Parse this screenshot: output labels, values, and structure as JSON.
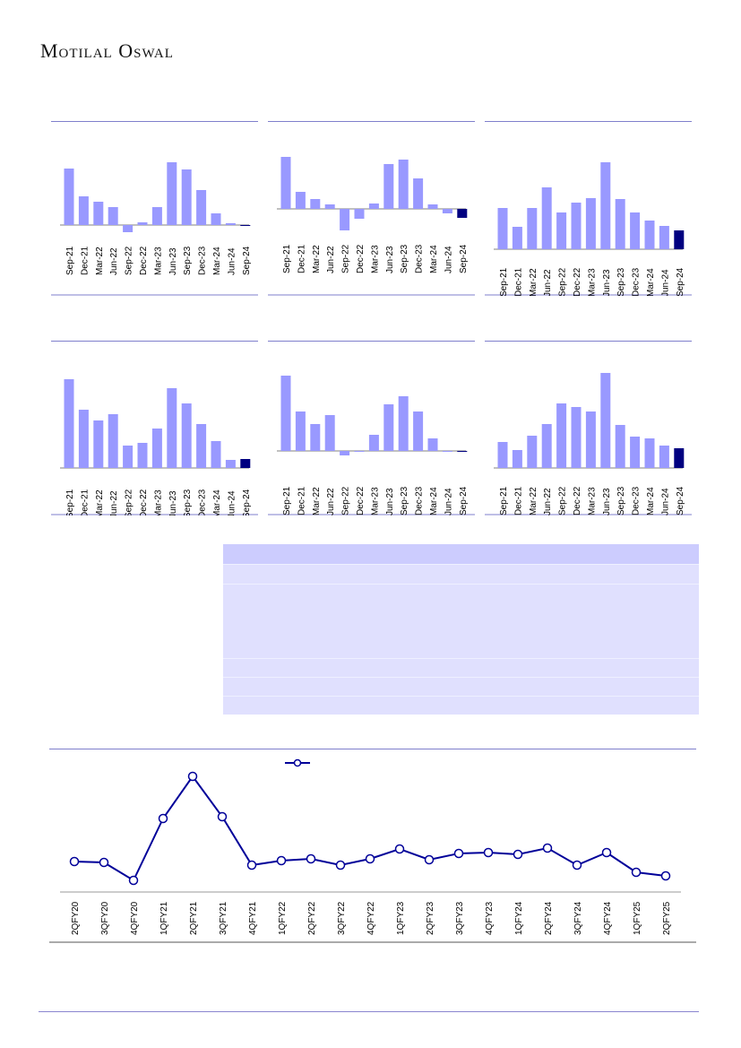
{
  "brand": "Motilal Oswal",
  "colors": {
    "bar": "#9999ff",
    "bar_latest": "#000080",
    "line": "#000099",
    "rule": "#7f7fcc"
  },
  "chart_data": [
    {
      "type": "bar",
      "categories": [
        "Sep-21",
        "Dec-21",
        "Mar-22",
        "Jun-22",
        "Sep-22",
        "Dec-22",
        "Mar-23",
        "Jun-23",
        "Sep-23",
        "Dec-23",
        "Mar-24",
        "Jun-24",
        "Sep-24"
      ],
      "values": [
        63,
        32,
        26,
        20,
        -8,
        3,
        20,
        70,
        62,
        39,
        13,
        2,
        -1
      ]
    },
    {
      "type": "bar",
      "categories": [
        "Sep-21",
        "Dec-21",
        "Mar-22",
        "Jun-22",
        "Sep-22",
        "Dec-22",
        "Mar-23",
        "Jun-23",
        "Sep-23",
        "Dec-23",
        "Mar-24",
        "Jun-24",
        "Sep-24"
      ],
      "values": [
        58,
        19,
        11,
        5,
        -24,
        -11,
        6,
        50,
        55,
        34,
        5,
        -5,
        -10
      ]
    },
    {
      "type": "bar",
      "categories": [
        "Sep-21",
        "Dec-21",
        "Mar-22",
        "Jun-22",
        "Sep-22",
        "Dec-22",
        "Mar-23",
        "Jun-23",
        "Sep-23",
        "Dec-23",
        "Mar-24",
        "Jun-24",
        "Sep-24"
      ],
      "values": [
        46,
        25,
        46,
        69,
        41,
        52,
        57,
        97,
        56,
        41,
        32,
        26,
        21
      ]
    },
    {
      "type": "bar",
      "categories": [
        "Sep-21",
        "Dec-21",
        "Mar-22",
        "Jun-22",
        "Sep-22",
        "Dec-22",
        "Mar-23",
        "Jun-23",
        "Sep-23",
        "Dec-23",
        "Mar-24",
        "Jun-24",
        "Sep-24"
      ],
      "values": [
        99,
        65,
        53,
        60,
        25,
        28,
        44,
        89,
        72,
        49,
        30,
        9,
        10
      ]
    },
    {
      "type": "bar",
      "categories": [
        "Sep-21",
        "Dec-21",
        "Mar-22",
        "Jun-22",
        "Sep-22",
        "Dec-22",
        "Mar-23",
        "Jun-23",
        "Sep-23",
        "Dec-23",
        "Mar-24",
        "Jun-24",
        "Sep-24"
      ],
      "values": [
        84,
        44,
        30,
        40,
        -5,
        0,
        18,
        52,
        61,
        44,
        14,
        0,
        -1
      ]
    },
    {
      "type": "bar",
      "categories": [
        "Sep-21",
        "Dec-21",
        "Mar-22",
        "Jun-22",
        "Sep-22",
        "Dec-22",
        "Mar-23",
        "Jun-23",
        "Sep-23",
        "Dec-23",
        "Mar-24",
        "Jun-24",
        "Sep-24"
      ],
      "values": [
        29,
        20,
        36,
        49,
        72,
        68,
        63,
        106,
        48,
        35,
        33,
        25,
        22
      ]
    },
    {
      "type": "line",
      "categories": [
        "2QFY20",
        "3QFY20",
        "4QFY20",
        "1QFY21",
        "2QFY21",
        "3QFY21",
        "4QFY21",
        "1QFY22",
        "2QFY22",
        "3QFY22",
        "4QFY22",
        "1QFY23",
        "2QFY23",
        "3QFY23",
        "4QFY23",
        "1QFY24",
        "2QFY24",
        "3QFY24",
        "4QFY24",
        "1QFY25",
        "2QFY25"
      ],
      "values": [
        34,
        33,
        13,
        82,
        129,
        84,
        30,
        35,
        37,
        30,
        37,
        48,
        36,
        43,
        44,
        42,
        49,
        30,
        44,
        22,
        18
      ],
      "legend": "top-center"
    }
  ]
}
